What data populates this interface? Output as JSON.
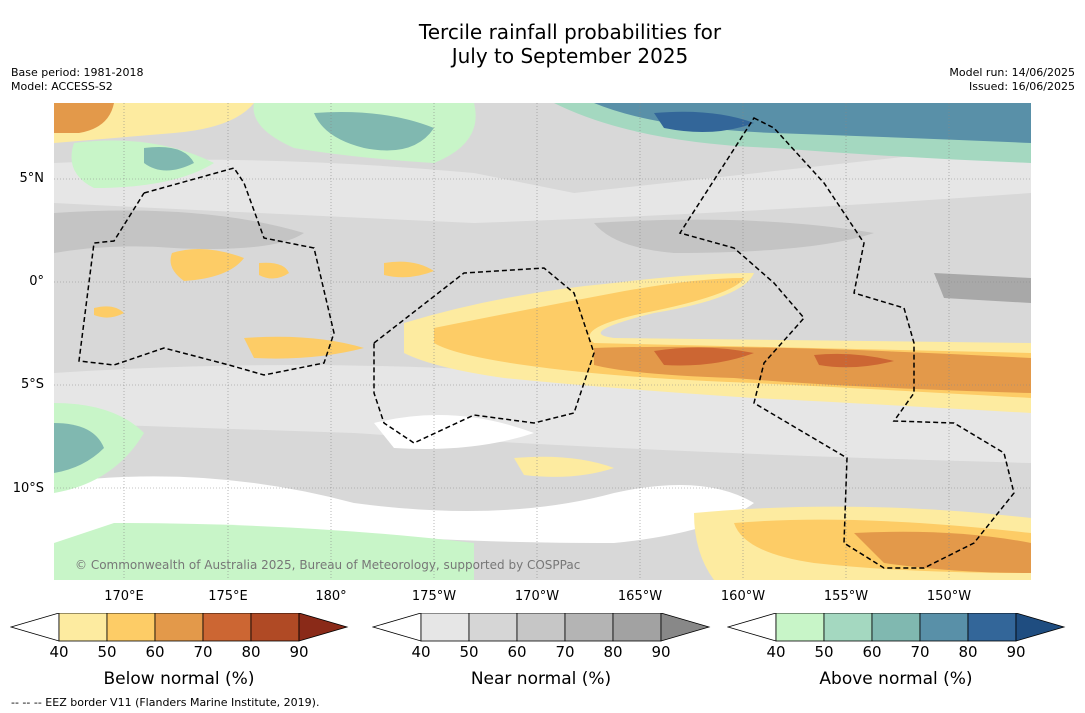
{
  "title_line1": "Tercile rainfall probabilities for",
  "title_line2": "July to September 2025",
  "meta_left": {
    "base_period": "Base period: 1981-2018",
    "model": "Model: ACCESS-S2"
  },
  "meta_right": {
    "model_run": "Model run: 14/06/2025",
    "issued": "Issued: 16/06/2025"
  },
  "lat_labels": [
    "5°N",
    "0°",
    "5°S",
    "10°S"
  ],
  "lon_labels": [
    "170°E",
    "175°E",
    "180°",
    "175°W",
    "170°W",
    "165°W",
    "160°W",
    "155°W",
    "150°W"
  ],
  "copyright": "© Commonwealth of Australia 2025, Bureau of Meteorology, supported by COSPPac",
  "colorbars": [
    {
      "label": "Below normal (%)",
      "ticks": [
        "40",
        "50",
        "60",
        "70",
        "80",
        "90"
      ],
      "colors": [
        "#ffffff",
        "#fdeba0",
        "#fdcc66",
        "#e3994a",
        "#cc6633",
        "#b04a25",
        "#8a2a18"
      ]
    },
    {
      "label": "Near normal (%)",
      "ticks": [
        "40",
        "50",
        "60",
        "70",
        "80",
        "90"
      ],
      "colors": [
        "#ffffff",
        "#e6e6e6",
        "#d6d6d6",
        "#c6c6c6",
        "#b4b4b4",
        "#a2a2a2",
        "#888888"
      ]
    },
    {
      "label": "Above normal (%)",
      "ticks": [
        "40",
        "50",
        "60",
        "70",
        "80",
        "90"
      ],
      "colors": [
        "#ffffff",
        "#c8f5c8",
        "#a4d8c0",
        "#80b8b0",
        "#5990a8",
        "#336699",
        "#1f4d80"
      ]
    }
  ],
  "footnote": "-- -- -- EEZ border V11 (Flanders Marine Institute, 2019)."
}
